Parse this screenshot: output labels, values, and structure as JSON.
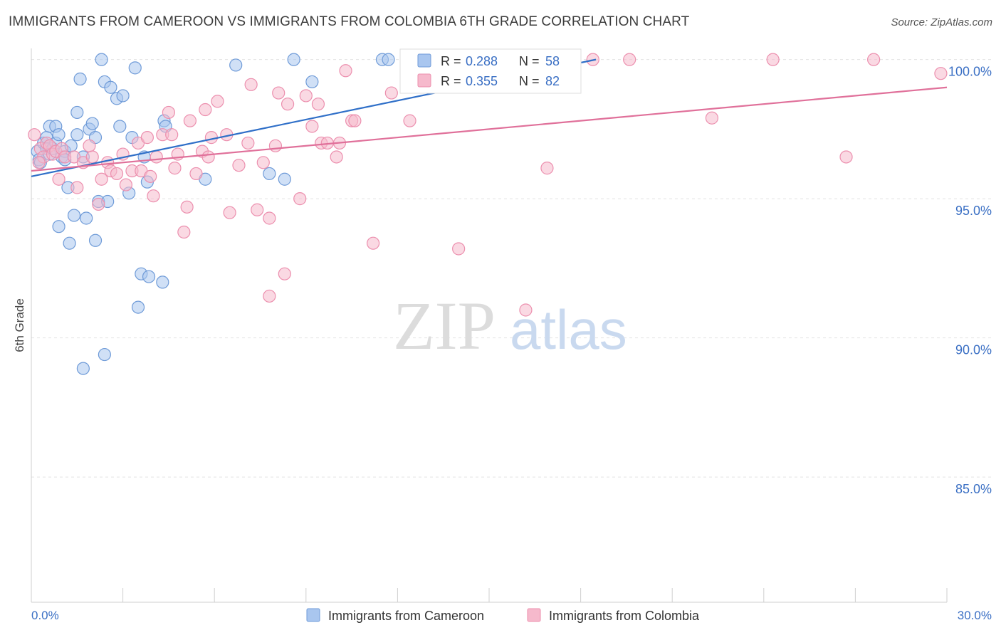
{
  "title": "IMMIGRANTS FROM CAMEROON VS IMMIGRANTS FROM COLOMBIA 6TH GRADE CORRELATION CHART",
  "source": "Source: ZipAtlas.com",
  "watermark": {
    "zip": "ZIP",
    "atlas": "atlas"
  },
  "colors": {
    "cameroon_fill": "#a9c6ef",
    "cameroon_stroke": "#6f9bd8",
    "cameroon_line": "#2f6fc8",
    "colombia_fill": "#f6b9cc",
    "colombia_stroke": "#ec8fae",
    "colombia_line": "#e0709a",
    "value_text": "#3a6fc4",
    "grid": "#e2e2e2"
  },
  "chart_data": {
    "type": "scatter",
    "title": "IMMIGRANTS FROM CAMEROON VS IMMIGRANTS FROM COLOMBIA 6TH GRADE CORRELATION CHART",
    "xlabel": "",
    "ylabel": "6th Grade",
    "xlim": [
      0,
      30
    ],
    "ylim": [
      80.5,
      100.4
    ],
    "x_tick_labels": [
      "0.0%",
      "30.0%"
    ],
    "y_ticks": [
      85,
      90,
      95,
      100
    ],
    "y_tick_labels": [
      "85.0%",
      "90.0%",
      "95.0%",
      "100.0%"
    ],
    "legend_position": "bottom",
    "stats": [
      {
        "r_label": "R =",
        "r": "0.288",
        "n_label": "N =",
        "n": "58"
      },
      {
        "r_label": "R =",
        "r": "0.355",
        "n_label": "N =",
        "n": "82"
      }
    ],
    "series": [
      {
        "name": "Immigrants from Cameroon",
        "trend": {
          "x": [
            0,
            18.5
          ],
          "y": [
            95.8,
            100.0
          ]
        },
        "points": [
          [
            0.2,
            96.7
          ],
          [
            0.25,
            96.4
          ],
          [
            0.3,
            96.3
          ],
          [
            0.4,
            97.0
          ],
          [
            0.5,
            97.2
          ],
          [
            0.5,
            96.8
          ],
          [
            0.6,
            97.6
          ],
          [
            0.6,
            96.6
          ],
          [
            0.7,
            96.8
          ],
          [
            0.8,
            97.0
          ],
          [
            0.8,
            97.6
          ],
          [
            0.9,
            97.3
          ],
          [
            0.9,
            94.0
          ],
          [
            1.0,
            96.5
          ],
          [
            1.1,
            96.7
          ],
          [
            1.1,
            96.4
          ],
          [
            1.2,
            95.4
          ],
          [
            1.25,
            93.4
          ],
          [
            1.3,
            96.9
          ],
          [
            1.4,
            94.4
          ],
          [
            1.5,
            97.3
          ],
          [
            1.5,
            98.1
          ],
          [
            1.6,
            99.3
          ],
          [
            1.7,
            96.5
          ],
          [
            1.8,
            94.3
          ],
          [
            1.9,
            97.5
          ],
          [
            2.0,
            97.7
          ],
          [
            2.1,
            97.2
          ],
          [
            2.1,
            93.5
          ],
          [
            2.2,
            94.9
          ],
          [
            2.3,
            100.0
          ],
          [
            2.4,
            99.2
          ],
          [
            2.5,
            94.9
          ],
          [
            2.6,
            99.0
          ],
          [
            2.8,
            98.6
          ],
          [
            2.9,
            97.6
          ],
          [
            3.0,
            98.7
          ],
          [
            3.2,
            95.2
          ],
          [
            3.3,
            97.2
          ],
          [
            3.4,
            99.7
          ],
          [
            3.6,
            92.3
          ],
          [
            3.7,
            96.5
          ],
          [
            3.8,
            95.6
          ],
          [
            3.85,
            92.2
          ],
          [
            4.3,
            92.0
          ],
          [
            4.35,
            97.8
          ],
          [
            4.4,
            97.6
          ],
          [
            5.7,
            95.7
          ],
          [
            6.7,
            99.8
          ],
          [
            7.8,
            95.9
          ],
          [
            8.3,
            95.7
          ],
          [
            8.6,
            100.0
          ],
          [
            9.2,
            99.2
          ],
          [
            11.5,
            100.0
          ],
          [
            11.7,
            100.0
          ],
          [
            3.5,
            91.1
          ],
          [
            1.7,
            88.9
          ],
          [
            2.4,
            89.4
          ]
        ]
      },
      {
        "name": "Immigrants from Colombia",
        "trend": {
          "x": [
            0,
            30
          ],
          "y": [
            96.0,
            99.0
          ]
        },
        "points": [
          [
            0.1,
            97.3
          ],
          [
            0.3,
            96.8
          ],
          [
            0.4,
            96.5
          ],
          [
            0.5,
            97.0
          ],
          [
            0.6,
            96.9
          ],
          [
            0.7,
            96.6
          ],
          [
            0.8,
            96.7
          ],
          [
            0.9,
            95.7
          ],
          [
            1.0,
            96.8
          ],
          [
            1.1,
            96.5
          ],
          [
            1.4,
            96.5
          ],
          [
            1.5,
            95.4
          ],
          [
            1.7,
            96.3
          ],
          [
            1.9,
            96.9
          ],
          [
            2.0,
            96.5
          ],
          [
            2.2,
            94.8
          ],
          [
            2.3,
            95.7
          ],
          [
            2.5,
            96.3
          ],
          [
            2.6,
            96.0
          ],
          [
            2.8,
            95.9
          ],
          [
            3.0,
            96.6
          ],
          [
            3.1,
            95.5
          ],
          [
            3.3,
            96.0
          ],
          [
            3.5,
            97.0
          ],
          [
            3.6,
            96.0
          ],
          [
            3.8,
            97.2
          ],
          [
            3.9,
            95.8
          ],
          [
            4.0,
            95.1
          ],
          [
            4.1,
            96.5
          ],
          [
            4.3,
            97.3
          ],
          [
            4.5,
            98.1
          ],
          [
            4.6,
            97.3
          ],
          [
            4.7,
            96.1
          ],
          [
            4.8,
            96.6
          ],
          [
            5.0,
            93.8
          ],
          [
            5.1,
            94.7
          ],
          [
            5.2,
            97.8
          ],
          [
            5.4,
            95.9
          ],
          [
            5.6,
            96.7
          ],
          [
            5.7,
            98.2
          ],
          [
            5.8,
            96.5
          ],
          [
            5.9,
            97.2
          ],
          [
            6.1,
            98.5
          ],
          [
            6.4,
            97.3
          ],
          [
            6.5,
            94.5
          ],
          [
            6.8,
            96.2
          ],
          [
            7.1,
            97.0
          ],
          [
            7.2,
            99.1
          ],
          [
            7.4,
            94.6
          ],
          [
            7.6,
            96.3
          ],
          [
            7.8,
            94.3
          ],
          [
            8.0,
            96.9
          ],
          [
            8.1,
            98.8
          ],
          [
            8.3,
            92.3
          ],
          [
            8.4,
            98.4
          ],
          [
            8.8,
            95.0
          ],
          [
            9.0,
            98.7
          ],
          [
            9.2,
            97.6
          ],
          [
            9.4,
            98.4
          ],
          [
            9.5,
            97.0
          ],
          [
            9.7,
            97.0
          ],
          [
            10.0,
            96.5
          ],
          [
            10.1,
            97.0
          ],
          [
            10.3,
            99.6
          ],
          [
            10.5,
            97.8
          ],
          [
            10.6,
            97.8
          ],
          [
            11.2,
            93.4
          ],
          [
            11.8,
            98.8
          ],
          [
            12.4,
            97.8
          ],
          [
            14.0,
            93.2
          ],
          [
            14.8,
            100.0
          ],
          [
            16.2,
            91.0
          ],
          [
            16.9,
            96.1
          ],
          [
            18.4,
            100.0
          ],
          [
            19.6,
            100.0
          ],
          [
            22.3,
            97.9
          ],
          [
            24.3,
            100.0
          ],
          [
            26.7,
            96.5
          ],
          [
            27.6,
            100.0
          ],
          [
            29.8,
            99.5
          ],
          [
            7.8,
            91.5
          ],
          [
            0.25,
            96.3
          ]
        ]
      }
    ]
  }
}
